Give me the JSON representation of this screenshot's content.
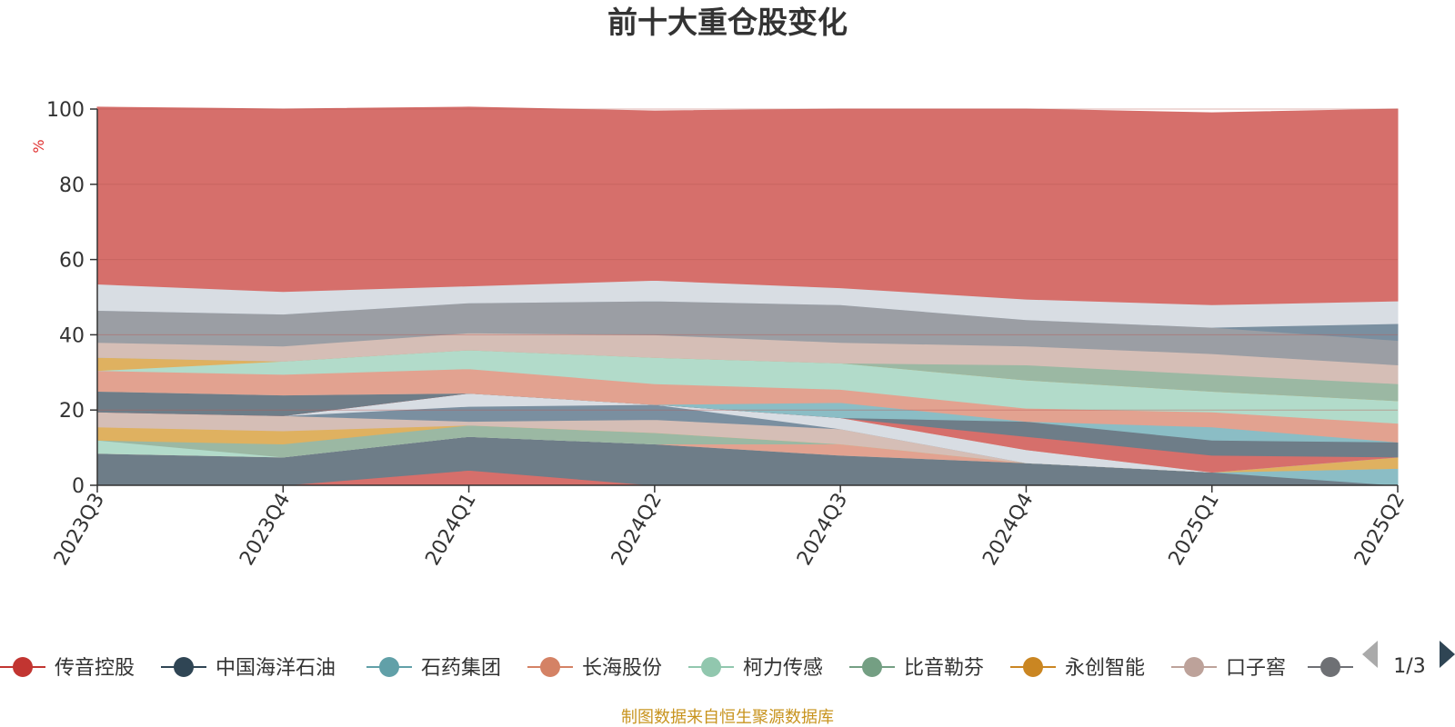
{
  "chart_data": {
    "type": "area",
    "stacked": true,
    "title": "前十大重仓股变化",
    "ylabel": "%",
    "ylim": [
      0,
      100
    ],
    "yticks": [
      0,
      20,
      40,
      60,
      80,
      100
    ],
    "grid": true,
    "legend_position": "bottom",
    "legend_page": "1/3",
    "footer": "制图数据来自恒生聚源数据库",
    "categories": [
      "2023Q3",
      "2023Q4",
      "2024Q1",
      "2024Q2",
      "2024Q3",
      "2024Q4",
      "2025Q1",
      "2025Q2"
    ],
    "series": [
      {
        "name": "传音控股",
        "color": "#d66f6b",
        "values": [
          0,
          0,
          4,
          0,
          0,
          0,
          0,
          0
        ]
      },
      {
        "name": "中国海洋石油",
        "color": "#6e7d88",
        "values": [
          8.5,
          7.5,
          9,
          11,
          8,
          6,
          3.5,
          0
        ]
      },
      {
        "name": "石药集团",
        "color": "#8bbdc5",
        "values": [
          0,
          0,
          0,
          0,
          0,
          0,
          0,
          4.5
        ]
      },
      {
        "name": "长海股份",
        "color": "#e2a290",
        "values": [
          0,
          0,
          0,
          0,
          3,
          0,
          0,
          0
        ]
      },
      {
        "name": "柯力传感",
        "color": "#b2dbca",
        "values": [
          3.5,
          0,
          0,
          0,
          0,
          0,
          0,
          0
        ]
      },
      {
        "name": "比音勒芬",
        "color": "#9bb8a3",
        "values": [
          0,
          3.5,
          3,
          3,
          0,
          0,
          0,
          0
        ]
      },
      {
        "name": "永创智能",
        "color": "#dfb160",
        "values": [
          3.5,
          3.5,
          0,
          0,
          0,
          0,
          0,
          3
        ]
      },
      {
        "name": "口子窖",
        "color": "#d5beb6",
        "values": [
          4,
          4,
          1,
          3.5,
          4,
          0,
          0,
          0
        ]
      },
      {
        "name": "",
        "color": "#7a8fa0",
        "values": [
          0,
          0,
          4,
          4,
          0,
          0,
          0,
          0
        ]
      },
      {
        "name": "",
        "color": "#d8dde3",
        "values": [
          0,
          0,
          3.5,
          0,
          3,
          3.5,
          0,
          0
        ]
      },
      {
        "name": "",
        "color": "#e2a290",
        "values": [
          0,
          0,
          0,
          0,
          0,
          0,
          0,
          0
        ]
      },
      {
        "name": "",
        "color": "#d66f6b",
        "values": [
          0,
          0,
          0,
          0,
          0,
          3.5,
          4.5,
          0
        ]
      },
      {
        "name": "",
        "color": "#6e7d88",
        "values": [
          5.5,
          5.5,
          0,
          0,
          0,
          4,
          4,
          4
        ]
      },
      {
        "name": "",
        "color": "#8bbdc5",
        "values": [
          0,
          0,
          0,
          0,
          4,
          0,
          3.5,
          0
        ]
      },
      {
        "name": "",
        "color": "#e2a290",
        "values": [
          5.5,
          5.5,
          6.5,
          5.5,
          3.5,
          3.5,
          4,
          5
        ]
      },
      {
        "name": "",
        "color": "#b2dbca",
        "values": [
          0,
          3.5,
          5,
          7,
          7,
          7.5,
          5.5,
          6
        ]
      },
      {
        "name": "",
        "color": "#dfb160",
        "values": [
          3.5,
          0,
          0,
          0,
          0,
          0,
          0,
          0
        ]
      },
      {
        "name": "",
        "color": "#9bb8a3",
        "values": [
          0,
          0,
          0,
          0,
          0,
          4,
          4.5,
          4.5
        ]
      },
      {
        "name": "",
        "color": "#d5beb6",
        "values": [
          4,
          4,
          4.5,
          6,
          5.5,
          5,
          5.5,
          5
        ]
      },
      {
        "name": "",
        "color": "#9b9ea4",
        "values": [
          8.5,
          8.5,
          8,
          9,
          10,
          7,
          7,
          6.5
        ]
      },
      {
        "name": "",
        "color": "#7a8fa0",
        "values": [
          0,
          0,
          0,
          0,
          0,
          0,
          0,
          4.5
        ]
      },
      {
        "name": "",
        "color": "#d8dde3",
        "values": [
          7,
          6,
          4.5,
          5.5,
          4.5,
          5.5,
          6,
          6
        ]
      },
      {
        "name": "",
        "color": "#d66f6b",
        "values": [
          47,
          48.5,
          47.5,
          45,
          47.5,
          50.5,
          51,
          51
        ]
      }
    ],
    "legend": [
      {
        "name": "传音控股",
        "color": "#c23531"
      },
      {
        "name": "中国海洋石油",
        "color": "#2f4554"
      },
      {
        "name": "石药集团",
        "color": "#61a0a8"
      },
      {
        "name": "长海股份",
        "color": "#d48265"
      },
      {
        "name": "柯力传感",
        "color": "#91c7ae"
      },
      {
        "name": "比音勒芬",
        "color": "#749f83"
      },
      {
        "name": "永创智能",
        "color": "#ca8622"
      },
      {
        "name": "口子窖",
        "color": "#bda29a"
      },
      {
        "name": "",
        "color": "#6e7074"
      }
    ]
  }
}
